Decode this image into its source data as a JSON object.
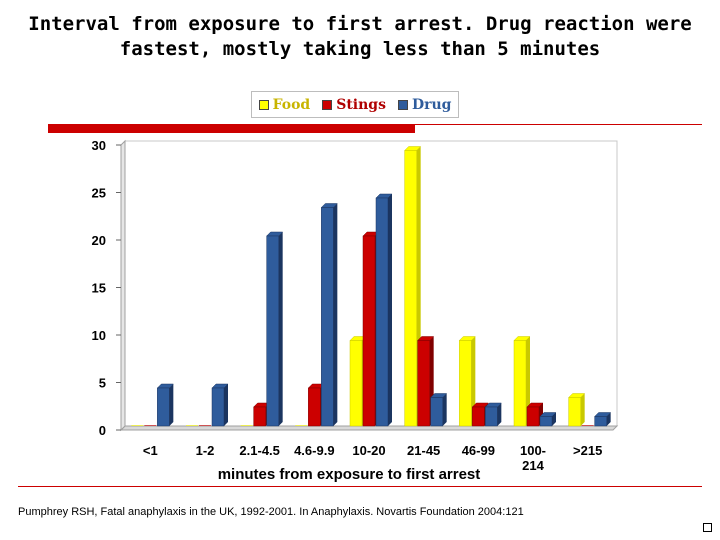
{
  "title_line1": "Interval from exposure to first arrest. Drug reaction were",
  "title_line2": "fastest, mostly taking less than 5 minutes",
  "footnote": "Pumphrey RSH, Fatal anaphylaxis in the UK, 1992-2001. In Anaphylaxis. Novartis Foundation 2004:121",
  "colors": {
    "food": "#ffff00",
    "food_dark": "#c9c900",
    "stings": "#cc0000",
    "stings_dark": "#800000",
    "drug": "#2f5c9c",
    "drug_dark": "#1b3560",
    "accent": "#cc0000"
  },
  "chart_data": {
    "type": "bar",
    "title": "Interval from exposure to first arrest. Drug reaction were fastest, mostly taking less than 5 minutes",
    "xlabel": "minutes from exposure to first arrest",
    "ylabel": "",
    "ylim": [
      0,
      30
    ],
    "yticks": [
      0,
      5,
      10,
      15,
      20,
      25,
      30
    ],
    "categories": [
      "<1",
      "1-2",
      "2.1-4.5",
      "4.6-9.9",
      "10-20",
      "21-45",
      "46-99",
      "100-\n214",
      ">215"
    ],
    "category_labels": [
      [
        "<1"
      ],
      [
        "1-2"
      ],
      [
        "2.1-4.5"
      ],
      [
        "4.6-9.9"
      ],
      [
        "10-20"
      ],
      [
        "21-45"
      ],
      [
        "46-99"
      ],
      [
        "100-",
        "214"
      ],
      [
        ">215"
      ]
    ],
    "series": [
      {
        "name": "Food",
        "key": "food",
        "values": [
          0,
          0,
          0,
          0,
          9,
          29,
          9,
          9,
          3
        ]
      },
      {
        "name": "Stings",
        "key": "stings",
        "values": [
          0,
          0,
          2,
          4,
          20,
          9,
          2,
          2,
          0
        ]
      },
      {
        "name": "Drug",
        "key": "drug",
        "values": [
          4,
          4,
          20,
          23,
          24,
          3,
          2,
          1,
          1
        ]
      }
    ],
    "legend_position": "top-center",
    "grid": false
  }
}
